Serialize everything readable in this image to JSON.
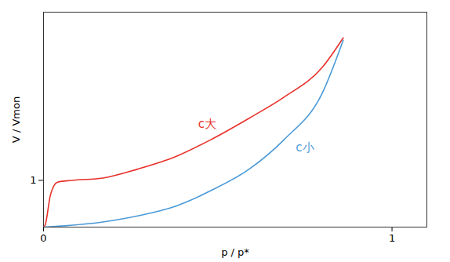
{
  "chart_data": {
    "type": "line",
    "x_label": "p / p*",
    "y_label": "V / Vmon",
    "xlim": [
      0,
      1.1
    ],
    "ylim": [
      0,
      4.6
    ],
    "xticks": [
      0,
      1
    ],
    "yticks": [
      1
    ],
    "grid": false,
    "series": [
      {
        "name": "c大",
        "color": "#e8302a",
        "x": [
          0,
          0.005,
          0.02,
          0.04,
          0.08,
          0.17,
          0.27,
          0.38,
          0.48,
          0.59,
          0.69,
          0.8,
          0.86
        ],
        "values": [
          0,
          0.05,
          0.69,
          0.96,
          1.0,
          1.05,
          1.24,
          1.51,
          1.87,
          2.33,
          2.78,
          3.42,
          4.05
        ],
        "label_x": 0.47,
        "label_y": 2.2
      },
      {
        "name": "c小",
        "color": "#4a9ad8",
        "x": [
          0,
          0.17,
          0.27,
          0.38,
          0.48,
          0.59,
          0.69,
          0.8,
          0.86
        ],
        "values": [
          0,
          0.11,
          0.24,
          0.45,
          0.78,
          1.24,
          1.87,
          2.87,
          4.0
        ],
        "label_x": 0.75,
        "label_y": 1.7
      }
    ]
  }
}
